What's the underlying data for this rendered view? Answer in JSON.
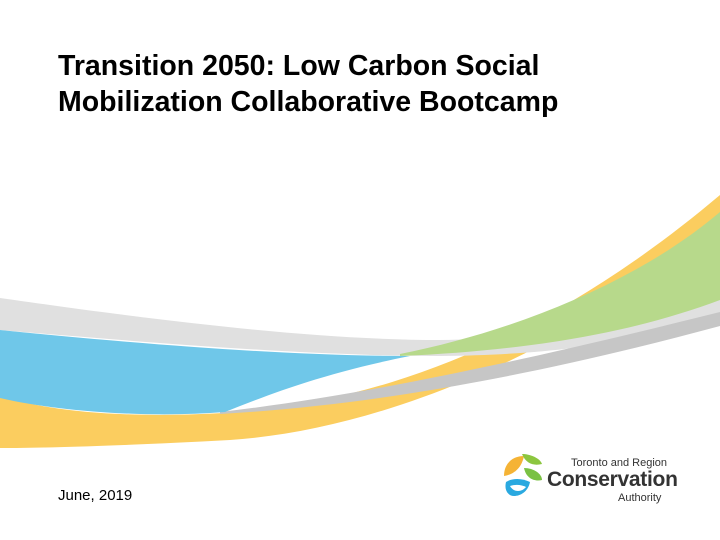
{
  "slide": {
    "title_lines": [
      "Transition 2050: Low Carbon Social",
      "Mobilization Collaborative Bootcamp"
    ],
    "date": "June, 2019"
  },
  "logo": {
    "line1": "Toronto and Region",
    "line2": "Conservation",
    "line3": "Authority",
    "icon": "leaf-drop-logo-icon"
  },
  "colors": {
    "swoosh_gray": "#dcdcdc",
    "swoosh_gray_dark": "#c6c6c6",
    "swoosh_blue": "#6fc7e9",
    "swoosh_green": "#b7d98b",
    "swoosh_yellow": "#fbcd5f",
    "logo_text": "#333333"
  }
}
